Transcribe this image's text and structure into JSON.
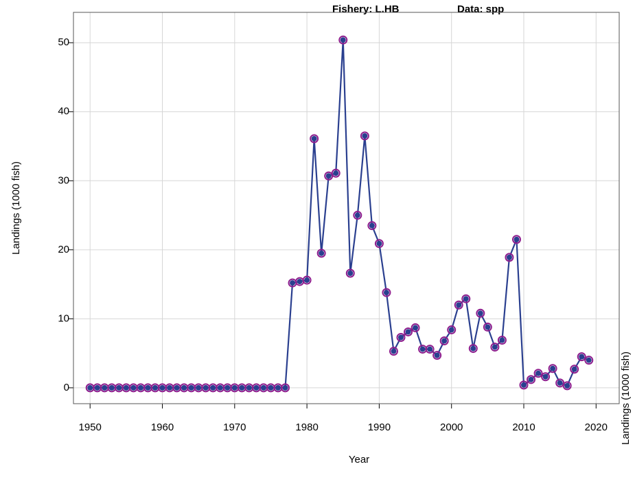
{
  "chart_data": {
    "type": "line",
    "header_fishery": "Fishery:  L.HB",
    "header_data": "Data: spp",
    "xlabel": "Year",
    "ylabel": "Landings (1000 fish)",
    "y2label": "Landings (1000 fish)",
    "x": [
      1950,
      1951,
      1952,
      1953,
      1954,
      1955,
      1956,
      1957,
      1958,
      1959,
      1960,
      1961,
      1962,
      1963,
      1964,
      1965,
      1966,
      1967,
      1968,
      1969,
      1970,
      1971,
      1972,
      1973,
      1974,
      1975,
      1976,
      1977,
      1978,
      1979,
      1980,
      1981,
      1982,
      1983,
      1984,
      1985,
      1986,
      1987,
      1988,
      1989,
      1990,
      1991,
      1992,
      1993,
      1994,
      1995,
      1996,
      1997,
      1998,
      1999,
      2000,
      2001,
      2002,
      2003,
      2004,
      2005,
      2006,
      2007,
      2008,
      2009,
      2010,
      2011,
      2012,
      2013,
      2014,
      2015,
      2016,
      2017,
      2018,
      2019
    ],
    "values": [
      0,
      0,
      0,
      0,
      0,
      0,
      0,
      0,
      0,
      0,
      0,
      0,
      0,
      0,
      0,
      0,
      0,
      0,
      0,
      0,
      0,
      0,
      0,
      0,
      0,
      0,
      0,
      0,
      15.2,
      15.4,
      15.6,
      36.1,
      19.5,
      30.7,
      31.1,
      50.4,
      16.6,
      25.0,
      36.5,
      23.5,
      20.9,
      13.8,
      5.3,
      7.3,
      8.1,
      8.7,
      5.6,
      5.6,
      4.7,
      6.8,
      8.4,
      12.0,
      12.9,
      5.7,
      10.8,
      8.8,
      5.9,
      6.9,
      18.9,
      21.5,
      0.4,
      1.2,
      2.1,
      1.6,
      2.8,
      0.7,
      0.3,
      2.7,
      4.5,
      4.0
    ],
    "color": "#2a3f8f",
    "marker_edge_color": "#8e1e8e",
    "xlim": [
      1947.7,
      2023.2
    ],
    "ylim": [
      -2.3,
      54.4
    ],
    "xticks": [
      1950,
      1960,
      1970,
      1980,
      1990,
      2000,
      2010,
      2020
    ],
    "yticks": [
      0,
      10,
      20,
      30,
      40,
      50
    ],
    "grid": true
  }
}
